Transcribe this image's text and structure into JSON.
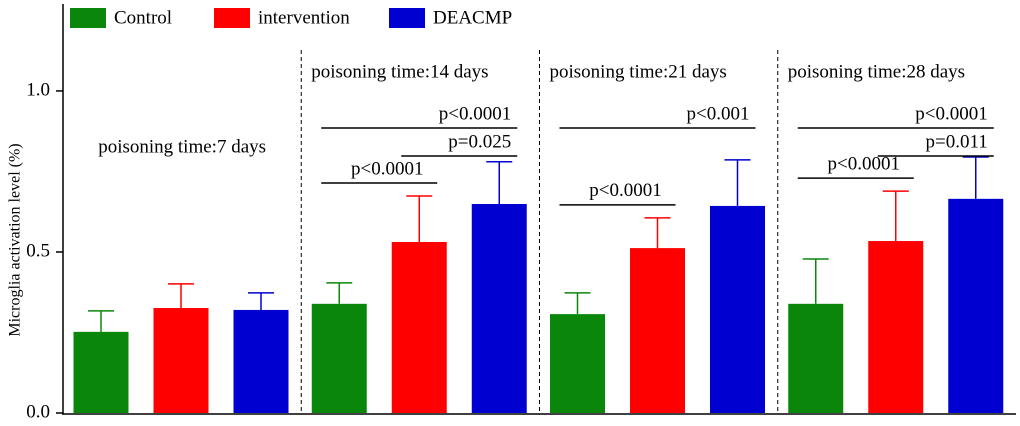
{
  "chart_data": {
    "type": "bar",
    "y_label": "Microglia activation level (%)",
    "categories": [
      "poisoning time:7 days",
      "poisoning time:14 days",
      "poisoning time:21 days",
      "poisoning time:28 days"
    ],
    "series": [
      {
        "name": "Control",
        "color": "#0a870a",
        "values": [
          0.252,
          0.339,
          0.307,
          0.339
        ],
        "errors": [
          0.065,
          0.065,
          0.066,
          0.139
        ]
      },
      {
        "name": "intervention",
        "color": "#ff0000",
        "values": [
          0.326,
          0.531,
          0.512,
          0.534
        ],
        "errors": [
          0.075,
          0.143,
          0.094,
          0.155
        ]
      },
      {
        "name": "DEACMP",
        "color": "#0000d0",
        "values": [
          0.32,
          0.649,
          0.643,
          0.665
        ],
        "errors": [
          0.053,
          0.131,
          0.143,
          0.13
        ]
      }
    ],
    "ylim": [
      0,
      1.27
    ],
    "yticks": [
      {
        "value": 0,
        "label": "0.0"
      },
      0.5,
      {
        "value": 1,
        "label": "1.0"
      }
    ],
    "brackets": [
      {
        "category": "poisoning time:14 days",
        "between": [
          "Control",
          "intervention"
        ],
        "text": "p<0.0001"
      },
      {
        "category": "poisoning time:14 days",
        "between": [
          "intervention",
          "DEACMP"
        ],
        "text": "p=0.025"
      },
      {
        "category": "poisoning time:14 days",
        "between": [
          "Control",
          "DEACMP"
        ],
        "text": "p<0.0001"
      },
      {
        "category": "poisoning time:21 days",
        "between": [
          "Control",
          "intervention"
        ],
        "text": "p<0.0001"
      },
      {
        "category": "poisoning time:21 days",
        "between": [
          "Control",
          "DEACMP"
        ],
        "text": "p<0.001"
      },
      {
        "category": "poisoning time:28 days",
        "between": [
          "Control",
          "intervention"
        ],
        "text": "p<0.0001"
      },
      {
        "category": "poisoning time:28 days",
        "between": [
          "intervention",
          "DEACMP"
        ],
        "text": "p=0.011"
      },
      {
        "category": "poisoning time:28 days",
        "between": [
          "Control",
          "DEACMP"
        ],
        "text": "p<0.0001"
      }
    ]
  }
}
